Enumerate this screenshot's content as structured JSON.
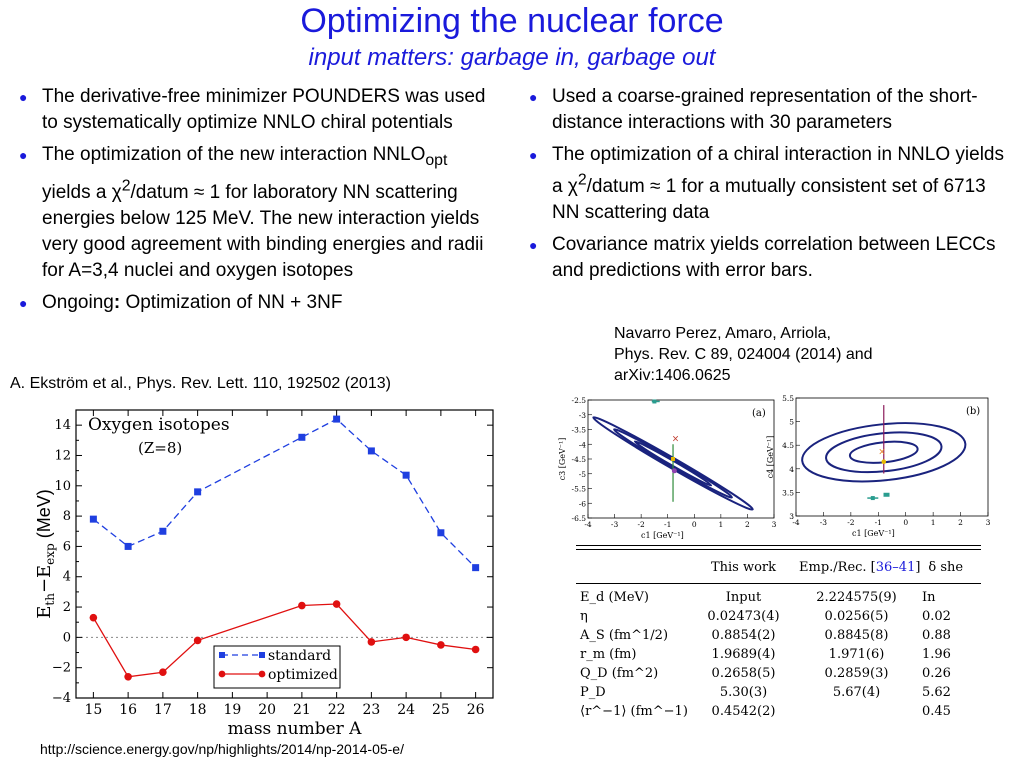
{
  "header": {
    "title": "Optimizing the nuclear force",
    "subtitle": "input matters: garbage in, garbage out"
  },
  "left": {
    "bullets": [
      {
        "html": "The derivative-free minimizer POUNDERS was used to systematically optimize NNLO chiral potentials"
      },
      {
        "html": "The optimization of the new interaction NNLO<sub>opt</sub> yields a χ<sup>2</sup>/datum ≈ 1 for laboratory NN scattering energies below 125 MeV. The new interaction yields very good agreement with binding energies and radii for A=3,4 nuclei and oxygen isotopes"
      },
      {
        "html": "Ongoing<b>:</b> Optimization of NN + 3NF"
      }
    ],
    "citation": "A. Ekström et al.,  Phys. Rev. Lett. 110, 192502 (2013)",
    "url": "http://science.energy.gov/np/highlights/2014/np-2014-05-e/"
  },
  "right": {
    "bullets": [
      {
        "html": "Used a coarse-grained representation of the short-distance interactions with 30 parameters"
      },
      {
        "html": "The optimization of a chiral interaction in NNLO yields a χ<sup>2</sup>/datum ≈ 1 for a mutually consistent set of 6713 NN scattering data"
      },
      {
        "html": "Covariance matrix yields correlation between LECCs and predictions with error bars."
      }
    ],
    "citation_lines": [
      "Navarro Perez, Amaro, Arriola,",
      "Phys. Rev. C 89, 024004 (2014) and",
      "arXiv:1406.0625"
    ]
  },
  "chart_data": [
    {
      "type": "line",
      "annotation": "Oxygen isotopes",
      "annotation2": "(Z=8)",
      "xlabel": "mass number A",
      "ylabel": "E_th−E_exp (MeV)",
      "x": [
        15,
        16,
        17,
        18,
        19,
        20,
        21,
        22,
        23,
        24,
        25,
        26
      ],
      "xlim": [
        14.5,
        26.5
      ],
      "ylim": [
        -4,
        15
      ],
      "yticks": [
        -4,
        -2,
        0,
        2,
        4,
        6,
        8,
        10,
        12,
        14
      ],
      "series": [
        {
          "name": "standard",
          "color": "#1f3fe0",
          "style": "dashed",
          "marker": "square",
          "x": [
            15,
            16,
            17,
            18,
            21,
            22,
            23,
            24,
            25,
            26
          ],
          "values": [
            7.8,
            6.0,
            7.0,
            9.6,
            13.2,
            14.4,
            12.3,
            10.7,
            6.9,
            4.6
          ]
        },
        {
          "name": "optimized",
          "color": "#e01010",
          "style": "solid",
          "marker": "circle",
          "x": [
            15,
            16,
            17,
            18,
            21,
            22,
            23,
            24,
            25,
            26
          ],
          "values": [
            1.3,
            -2.6,
            -2.3,
            -0.2,
            2.1,
            2.2,
            -0.3,
            0.0,
            -0.5,
            -0.8
          ]
        }
      ],
      "reference_line": 0
    },
    {
      "type": "scatter",
      "panel": "(a)",
      "xlabel": "c1 [GeV⁻¹]",
      "ylabel": "c3 [GeV⁻¹]",
      "xlim": [
        -4,
        3
      ],
      "ylim": [
        -6.5,
        -2.5
      ],
      "xticks": [
        -4,
        -3,
        -2,
        -1,
        0,
        1,
        2,
        3
      ],
      "yticks": [
        -2.5,
        -3,
        -3.5,
        -4,
        -4.5,
        -5,
        -5.5,
        -6,
        -6.5
      ]
    },
    {
      "type": "scatter",
      "panel": "(b)",
      "xlabel": "c1 [GeV⁻¹]",
      "ylabel": "c4 [GeV⁻¹]",
      "xlim": [
        -4,
        3
      ],
      "ylim": [
        3,
        5.5
      ],
      "xticks": [
        -4,
        -3,
        -2,
        -1,
        0,
        1,
        2,
        3
      ],
      "yticks": [
        3,
        3.5,
        4,
        4.5,
        5,
        5.5
      ]
    }
  ],
  "table": {
    "headers": [
      "",
      "This work",
      "Emp./Rec. [36–41]",
      "δ she"
    ],
    "rows": [
      {
        "label": "E_d (MeV)",
        "c1": "Input",
        "c2": "2.224575(9)",
        "c3": "In"
      },
      {
        "label": "η",
        "c1": "0.02473(4)",
        "c2": "0.0256(5)",
        "c3": "0.02"
      },
      {
        "label": "A_S (fm^1/2)",
        "c1": "0.8854(2)",
        "c2": "0.8845(8)",
        "c3": "0.88"
      },
      {
        "label": "r_m (fm)",
        "c1": "1.9689(4)",
        "c2": "1.971(6)",
        "c3": "1.96"
      },
      {
        "label": "Q_D (fm^2)",
        "c1": "0.2658(5)",
        "c2": "0.2859(3)",
        "c3": "0.26"
      },
      {
        "label": "P_D",
        "c1": "5.30(3)",
        "c2": "5.67(4)",
        "c3": "5.62"
      },
      {
        "label": "⟨r^−1⟩ (fm^−1)",
        "c1": "0.4542(2)",
        "c2": "",
        "c3": "0.45"
      }
    ]
  }
}
